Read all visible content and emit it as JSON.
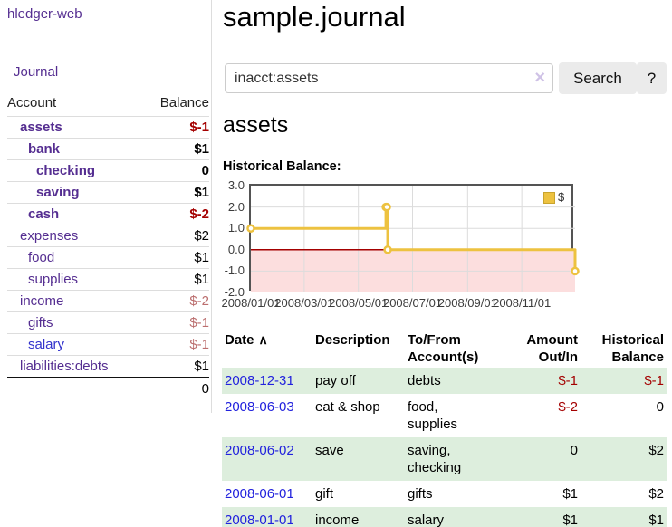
{
  "colors": {
    "purple_link": "#552e91",
    "blue_link": "#3333cc",
    "date_link": "#2222dd",
    "neg_strong": "#a40000",
    "neg_soft": "#bb6e6e",
    "row_shade": "#ddeedd",
    "chart_line": "#edc240",
    "chart_border": "#545454",
    "chart_grid": "#dcdcdc",
    "chart_neg_fill": "#fcdede",
    "chart_zero_line": "#a40000"
  },
  "brand": {
    "label": "hledger-web"
  },
  "nav": {
    "journal": "Journal"
  },
  "sidebar": {
    "col_account": "Account",
    "col_balance": "Balance",
    "accounts": [
      {
        "name": "assets",
        "depth": 1,
        "bold": true,
        "balance": "$-1",
        "balance_tone": "neg-strong"
      },
      {
        "name": "bank",
        "depth": 2,
        "bold": true,
        "balance": "$1"
      },
      {
        "name": "checking",
        "depth": 3,
        "bold": true,
        "balance": "0"
      },
      {
        "name": "saving",
        "depth": 3,
        "bold": true,
        "balance": "$1"
      },
      {
        "name": "cash",
        "depth": 2,
        "bold": true,
        "balance": "$-2",
        "balance_tone": "neg-strong"
      },
      {
        "name": "expenses",
        "depth": 1,
        "bold": false,
        "balance": "$2"
      },
      {
        "name": "food",
        "depth": 2,
        "bold": false,
        "balance": "$1"
      },
      {
        "name": "supplies",
        "depth": 2,
        "bold": false,
        "balance": "$1"
      },
      {
        "name": "income",
        "depth": 1,
        "bold": false,
        "balance": "$-2",
        "balance_tone": "neg-soft"
      },
      {
        "name": "gifts",
        "depth": 2,
        "bold": false,
        "balance": "$-1",
        "balance_tone": "neg-soft"
      },
      {
        "name": "salary",
        "depth": 2,
        "bold": false,
        "balance": "$-1",
        "balance_tone": "neg-soft",
        "name_tone": "blue"
      },
      {
        "name": "liabilities:debts",
        "depth": 1,
        "bold": false,
        "balance": "$1"
      }
    ],
    "total": "0"
  },
  "main": {
    "title": "sample.journal",
    "account_title": "assets",
    "chart_heading": "Historical Balance:"
  },
  "search": {
    "value": "inacct:assets",
    "clear": "×",
    "submit": "Search",
    "help": "?"
  },
  "chart_data": {
    "type": "line",
    "step": true,
    "title": "Historical Balance",
    "legend": [
      {
        "label": "$",
        "color": "#edc240"
      }
    ],
    "legend_position": "top-right",
    "x_unit": "days since 2008-01-01",
    "xlim": [
      0,
      365
    ],
    "ylim": [
      -2,
      3
    ],
    "grid": true,
    "negative_region_fill": true,
    "zero_line": true,
    "y_ticks": [
      {
        "v": 3,
        "label": "3.0"
      },
      {
        "v": 2,
        "label": "2.0"
      },
      {
        "v": 1,
        "label": "1.0"
      },
      {
        "v": 0,
        "label": "0.0"
      },
      {
        "v": -1,
        "label": "-1.0"
      },
      {
        "v": -2,
        "label": "-2.0"
      }
    ],
    "x_ticks": [
      {
        "v": 0,
        "label": "2008/01/01"
      },
      {
        "v": 60,
        "label": "2008/03/01"
      },
      {
        "v": 121,
        "label": "2008/05/01"
      },
      {
        "v": 182,
        "label": "2008/07/01"
      },
      {
        "v": 244,
        "label": "2008/09/01"
      },
      {
        "v": 305,
        "label": "2008/11/01"
      }
    ],
    "series": [
      {
        "name": "$",
        "points": [
          {
            "date": "2008-01-01",
            "x": 0,
            "y": 1
          },
          {
            "date": "2008-06-01",
            "x": 152,
            "y": 2
          },
          {
            "date": "2008-06-02",
            "x": 153,
            "y": 2
          },
          {
            "date": "2008-06-03",
            "x": 154,
            "y": 0
          },
          {
            "date": "2008-12-31",
            "x": 365,
            "y": -1
          }
        ]
      }
    ]
  },
  "register": {
    "sort_icon": "∧",
    "columns": [
      {
        "label": "Date"
      },
      {
        "label": "Description"
      },
      {
        "label": "To/From Account(s)"
      },
      {
        "label": "Amount Out/In"
      },
      {
        "label": "Historical Balance"
      }
    ],
    "rows": [
      {
        "date": "2008-12-31",
        "description": "pay off",
        "accounts": "debts",
        "amount": "$-1",
        "amount_neg": true,
        "balance": "$-1",
        "balance_neg": true,
        "shade": true
      },
      {
        "date": "2008-06-03",
        "description": "eat & shop",
        "accounts": "food, supplies",
        "amount": "$-2",
        "amount_neg": true,
        "balance": "0",
        "balance_neg": false,
        "shade": false
      },
      {
        "date": "2008-06-02",
        "description": "save",
        "accounts": "saving, checking",
        "amount": "0",
        "amount_neg": false,
        "balance": "$2",
        "balance_neg": false,
        "shade": true
      },
      {
        "date": "2008-06-01",
        "description": "gift",
        "accounts": "gifts",
        "amount": "$1",
        "amount_neg": false,
        "balance": "$2",
        "balance_neg": false,
        "shade": false
      },
      {
        "date": "2008-01-01",
        "description": "income",
        "accounts": "salary",
        "amount": "$1",
        "amount_neg": false,
        "balance": "$1",
        "balance_neg": false,
        "shade": true
      }
    ]
  }
}
